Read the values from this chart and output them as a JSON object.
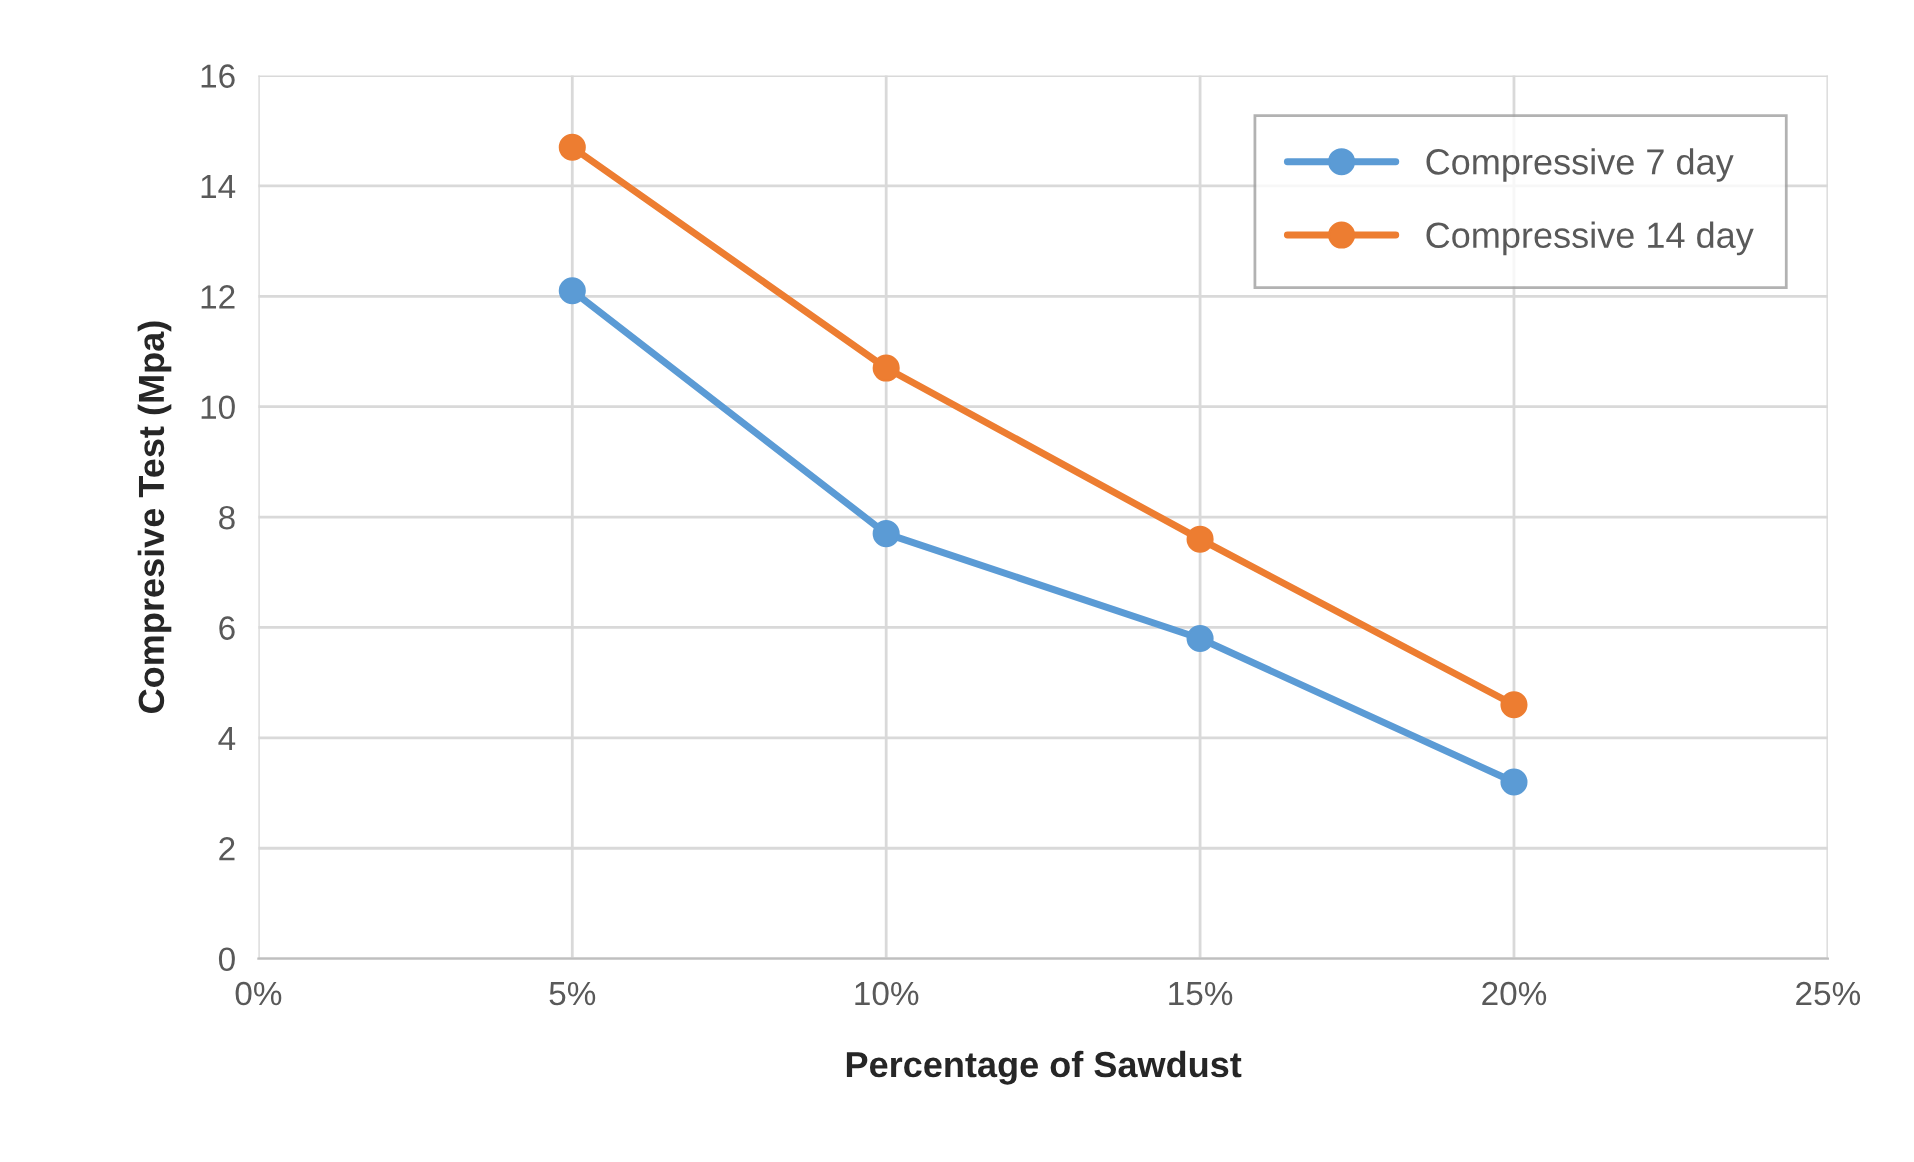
{
  "chart_data": {
    "type": "line",
    "xlabel": "Percentage of Sawdust",
    "ylabel": "Compresive Test (Mpa)",
    "x": [
      5,
      10,
      15,
      20
    ],
    "series": [
      {
        "name": "Compressive 7 day",
        "color": "#5b9bd5",
        "values": [
          12.1,
          7.7,
          5.8,
          3.2
        ]
      },
      {
        "name": "Compressive 14 day",
        "color": "#ed7d31",
        "values": [
          14.7,
          10.7,
          7.6,
          4.6
        ]
      }
    ],
    "xlim": [
      0,
      25
    ],
    "xticks": [
      {
        "value": 0,
        "label": "0%"
      },
      {
        "value": 5,
        "label": "5%"
      },
      {
        "value": 10,
        "label": "10%"
      },
      {
        "value": 15,
        "label": "15%"
      },
      {
        "value": 20,
        "label": "20%"
      },
      {
        "value": 25,
        "label": "25%"
      }
    ],
    "ylim": [
      0,
      16
    ],
    "yticks": [
      0,
      2,
      4,
      6,
      8,
      10,
      12,
      14,
      16
    ],
    "grid": true,
    "legend": "top right",
    "marker": "circle",
    "line_style": "solid"
  }
}
